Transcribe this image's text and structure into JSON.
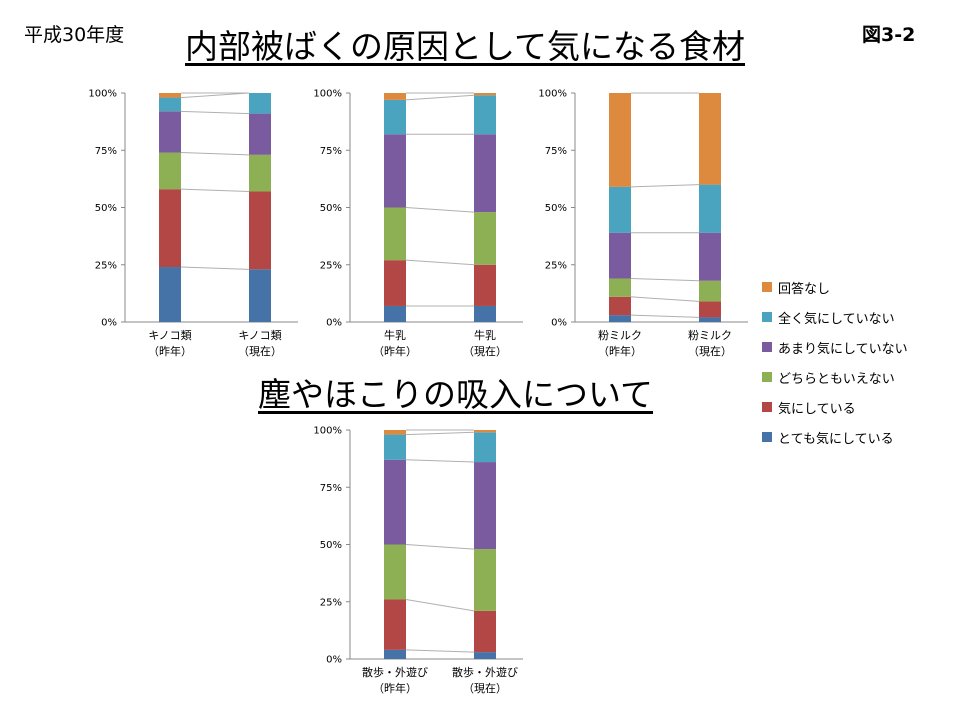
{
  "slide": {
    "corner_left": "平成30年度",
    "corner_right": "図3-2",
    "title": "内部被ばくの原因として気になる食材",
    "section_title": "塵やほこりの吸入について"
  },
  "legend": [
    {
      "label": "回答なし",
      "color": "#dd8a3f"
    },
    {
      "label": "全く気にしていない",
      "color": "#4aa3bf"
    },
    {
      "label": "あまり気にしていない",
      "color": "#7b5b9f"
    },
    {
      "label": "どちらともいえない",
      "color": "#8eb054"
    },
    {
      "label": "気にしている",
      "color": "#b24745"
    },
    {
      "label": "とても気にしている",
      "color": "#4572a7"
    }
  ],
  "chart_data": [
    {
      "type": "bar",
      "stacked": true,
      "categories": [
        [
          "キノコ類",
          "（昨年）"
        ],
        [
          "キノコ類",
          "（現在）"
        ]
      ],
      "y_ticks": [
        "0%",
        "25%",
        "50%",
        "75%",
        "100%"
      ],
      "ylim": [
        0,
        100
      ],
      "series_lines": true,
      "series": [
        {
          "name": "とても気にしている",
          "values": [
            24,
            23
          ]
        },
        {
          "name": "気にしている",
          "values": [
            34,
            34
          ]
        },
        {
          "name": "どちらともいえない",
          "values": [
            16,
            16
          ]
        },
        {
          "name": "あまり気にしていない",
          "values": [
            18,
            18
          ]
        },
        {
          "name": "全く気にしていない",
          "values": [
            6,
            9
          ]
        },
        {
          "name": "回答なし",
          "values": [
            2,
            0
          ]
        }
      ]
    },
    {
      "type": "bar",
      "stacked": true,
      "categories": [
        [
          "牛乳",
          "（昨年）"
        ],
        [
          "牛乳",
          "（現在）"
        ]
      ],
      "y_ticks": [
        "0%",
        "25%",
        "50%",
        "75%",
        "100%"
      ],
      "ylim": [
        0,
        100
      ],
      "series_lines": true,
      "series": [
        {
          "name": "とても気にしている",
          "values": [
            7,
            7
          ]
        },
        {
          "name": "気にしている",
          "values": [
            20,
            18
          ]
        },
        {
          "name": "どちらともいえない",
          "values": [
            23,
            23
          ]
        },
        {
          "name": "あまり気にしていない",
          "values": [
            32,
            34
          ]
        },
        {
          "name": "全く気にしていない",
          "values": [
            15,
            17
          ]
        },
        {
          "name": "回答なし",
          "values": [
            3,
            1
          ]
        }
      ]
    },
    {
      "type": "bar",
      "stacked": true,
      "categories": [
        [
          "粉ミルク",
          "（昨年）"
        ],
        [
          "粉ミルク",
          "（現在）"
        ]
      ],
      "y_ticks": [
        "0%",
        "25%",
        "50%",
        "75%",
        "100%"
      ],
      "ylim": [
        0,
        100
      ],
      "series_lines": true,
      "series": [
        {
          "name": "とても気にしている",
          "values": [
            3,
            2
          ]
        },
        {
          "name": "気にしている",
          "values": [
            8,
            7
          ]
        },
        {
          "name": "どちらともいえない",
          "values": [
            8,
            9
          ]
        },
        {
          "name": "あまり気にしていない",
          "values": [
            20,
            21
          ]
        },
        {
          "name": "全く気にしていない",
          "values": [
            20,
            21
          ]
        },
        {
          "name": "回答なし",
          "values": [
            41,
            40
          ]
        }
      ]
    },
    {
      "type": "bar",
      "stacked": true,
      "categories": [
        [
          "散歩・外遊び",
          "（昨年）"
        ],
        [
          "散歩・外遊び",
          "（現在）"
        ]
      ],
      "y_ticks": [
        "0%",
        "25%",
        "50%",
        "75%",
        "100%"
      ],
      "ylim": [
        0,
        100
      ],
      "series_lines": true,
      "series": [
        {
          "name": "とても気にしている",
          "values": [
            4,
            3
          ]
        },
        {
          "name": "気にしている",
          "values": [
            22,
            18
          ]
        },
        {
          "name": "どちらともいえない",
          "values": [
            24,
            27
          ]
        },
        {
          "name": "あまり気にしていない",
          "values": [
            37,
            38
          ]
        },
        {
          "name": "全く気にしていない",
          "values": [
            11,
            13
          ]
        },
        {
          "name": "回答なし",
          "values": [
            2,
            1
          ]
        }
      ]
    }
  ]
}
